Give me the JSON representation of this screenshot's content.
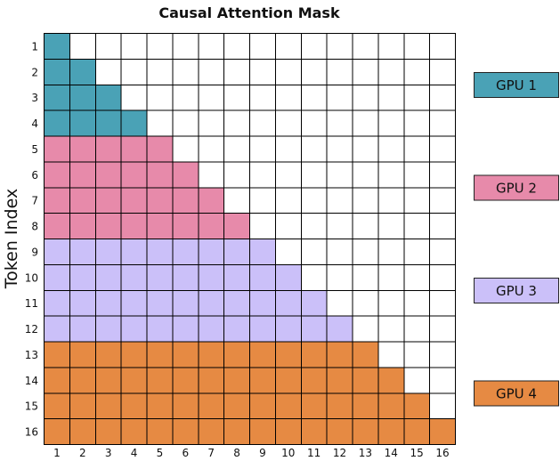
{
  "title": "Causal Attention Mask",
  "ylabel": "Token Index",
  "xlabel": "",
  "tokens": [
    "1",
    "2",
    "3",
    "4",
    "5",
    "6",
    "7",
    "8",
    "9",
    "10",
    "11",
    "12",
    "13",
    "14",
    "15",
    "16"
  ],
  "empty_color": "#ffffff",
  "chart_data": {
    "type": "heatmap",
    "title": "Causal Attention Mask",
    "ylabel": "Token Index",
    "xlabel": "",
    "x_categories": [
      "1",
      "2",
      "3",
      "4",
      "5",
      "6",
      "7",
      "8",
      "9",
      "10",
      "11",
      "12",
      "13",
      "14",
      "15",
      "16"
    ],
    "y_categories": [
      "1",
      "2",
      "3",
      "4",
      "5",
      "6",
      "7",
      "8",
      "9",
      "10",
      "11",
      "12",
      "13",
      "14",
      "15",
      "16"
    ],
    "mask": "lower-triangular (row i attends to columns 1..i)",
    "groups": [
      {
        "name": "GPU 1",
        "rows": [
          1,
          4
        ],
        "color": "#4aa2b6"
      },
      {
        "name": "GPU 2",
        "rows": [
          5,
          8
        ],
        "color": "#e78aaa"
      },
      {
        "name": "GPU 3",
        "rows": [
          9,
          12
        ],
        "color": "#cbc0f9"
      },
      {
        "name": "GPU 4",
        "rows": [
          13,
          16
        ],
        "color": "#e68a43"
      }
    ],
    "legend_position": "right"
  },
  "legend": [
    {
      "label": "GPU 1",
      "color": "#4aa2b6"
    },
    {
      "label": "GPU 2",
      "color": "#e78aaa"
    },
    {
      "label": "GPU 3",
      "color": "#cbc0f9"
    },
    {
      "label": "GPU 4",
      "color": "#e68a43"
    }
  ]
}
